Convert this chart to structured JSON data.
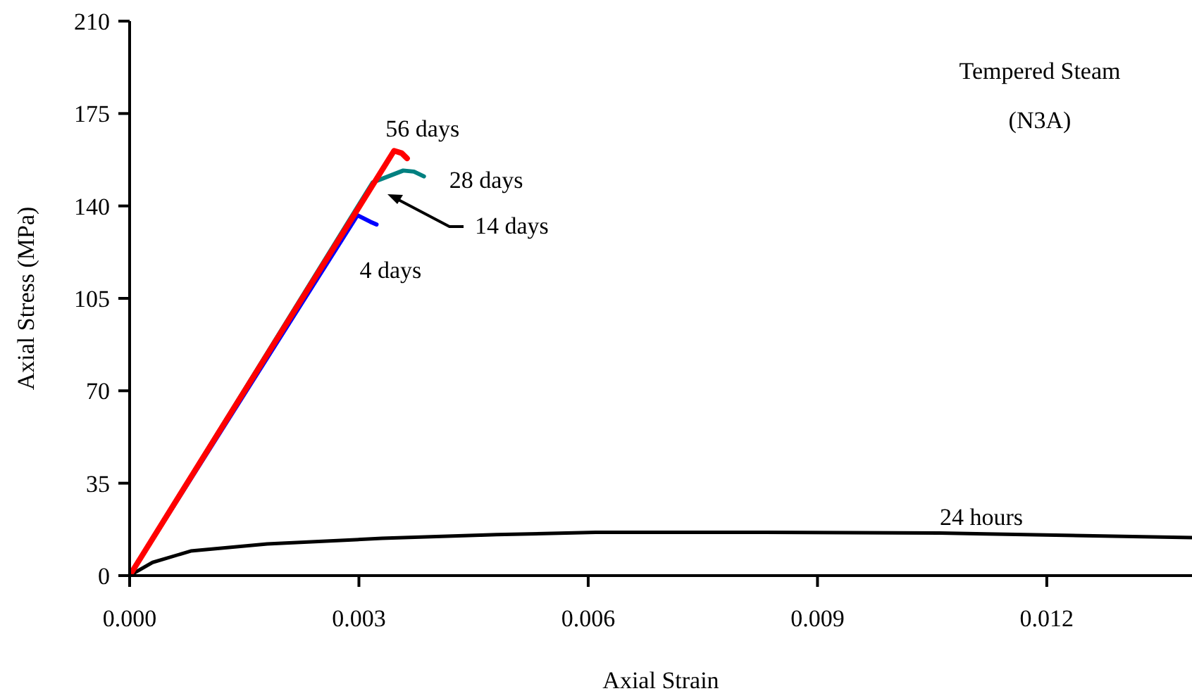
{
  "chart_data": {
    "type": "line",
    "xlabel": "Axial Strain",
    "ylabel": "Axial Stress (MPa)",
    "xlim": [
      0,
      0.0139
    ],
    "xticks": [
      {
        "value": 0,
        "label": "0.000"
      },
      {
        "value": 0.003,
        "label": "0.003"
      },
      {
        "value": 0.006,
        "label": "0.006"
      },
      {
        "value": 0.009,
        "label": "0.009"
      },
      {
        "value": 0.012,
        "label": "0.012"
      }
    ],
    "ylim": [
      0,
      210
    ],
    "yticks": [
      0,
      35,
      70,
      105,
      140,
      175,
      210
    ],
    "marker": "none",
    "line_style": "solid",
    "series": [
      {
        "name": "24 hours",
        "color": "#000000",
        "x": [
          0,
          0.0003,
          0.0008,
          0.0018,
          0.0033,
          0.0048,
          0.0061,
          0.0083,
          0.0106,
          0.0112,
          0.0139
        ],
        "values": [
          0,
          5,
          9.3,
          12,
          14.1,
          15.5,
          16.4,
          16.4,
          16.1,
          15.8,
          14.4
        ]
      },
      {
        "name": "4 days",
        "color": "#0000ff",
        "x": [
          0,
          0.00298,
          0.00315,
          0.00323
        ],
        "values": [
          0,
          136.5,
          134,
          133
        ]
      },
      {
        "name": "28 days",
        "color": "#008080",
        "x": [
          0,
          0.00318,
          0.00358,
          0.00372,
          0.00385
        ],
        "values": [
          0,
          148.9,
          153.4,
          153,
          151.2
        ]
      },
      {
        "name": "56 days",
        "color": "#ff0000",
        "x": [
          0,
          0.00346,
          0.00356,
          0.00363
        ],
        "values": [
          0,
          160.9,
          160,
          158
        ]
      }
    ],
    "annotations": [
      "Tempered Steam",
      "(N3A)",
      "14 days"
    ]
  }
}
